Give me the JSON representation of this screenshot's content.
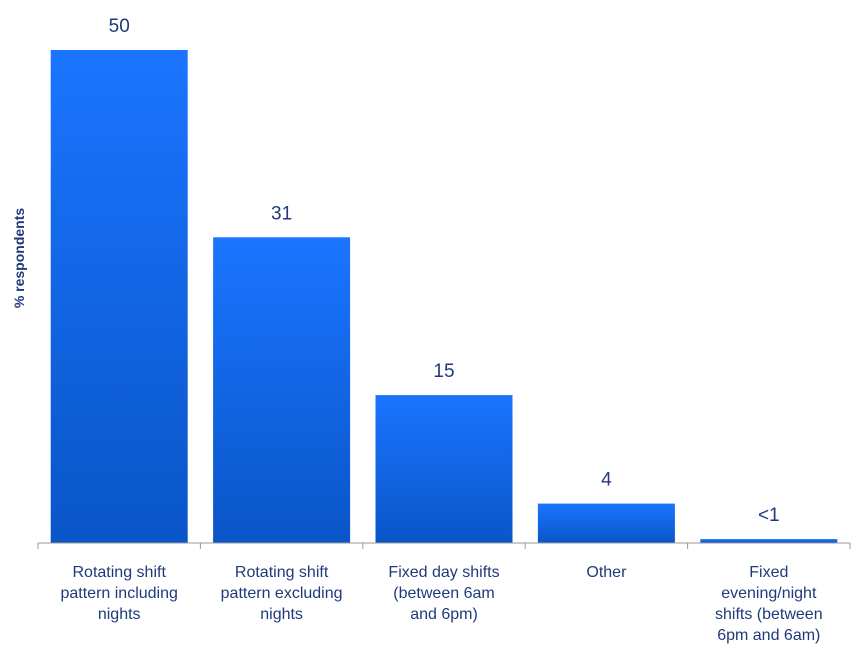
{
  "chart_data": {
    "type": "bar",
    "categories": [
      [
        "Rotating shift",
        "pattern including",
        "nights"
      ],
      [
        "Rotating shift",
        "pattern excluding",
        "nights"
      ],
      [
        "Fixed day shifts",
        "(between 6am",
        "and 6pm)"
      ],
      [
        "Other"
      ],
      [
        "Fixed",
        "evening/night",
        "shifts (between",
        "6pm and 6am)"
      ]
    ],
    "values": [
      50,
      31,
      15,
      4,
      0.4
    ],
    "data_labels": [
      "50",
      "31",
      "15",
      "4",
      "<1"
    ],
    "title": "",
    "xlabel": "",
    "ylabel": "% respondents",
    "ylim": [
      0,
      50
    ],
    "grid": false,
    "legend": "none",
    "colors": {
      "bar_top": "#1a75ff",
      "bar_bottom": "#0a55c8",
      "text": "#1f3a7a",
      "axis": "#999999"
    }
  }
}
